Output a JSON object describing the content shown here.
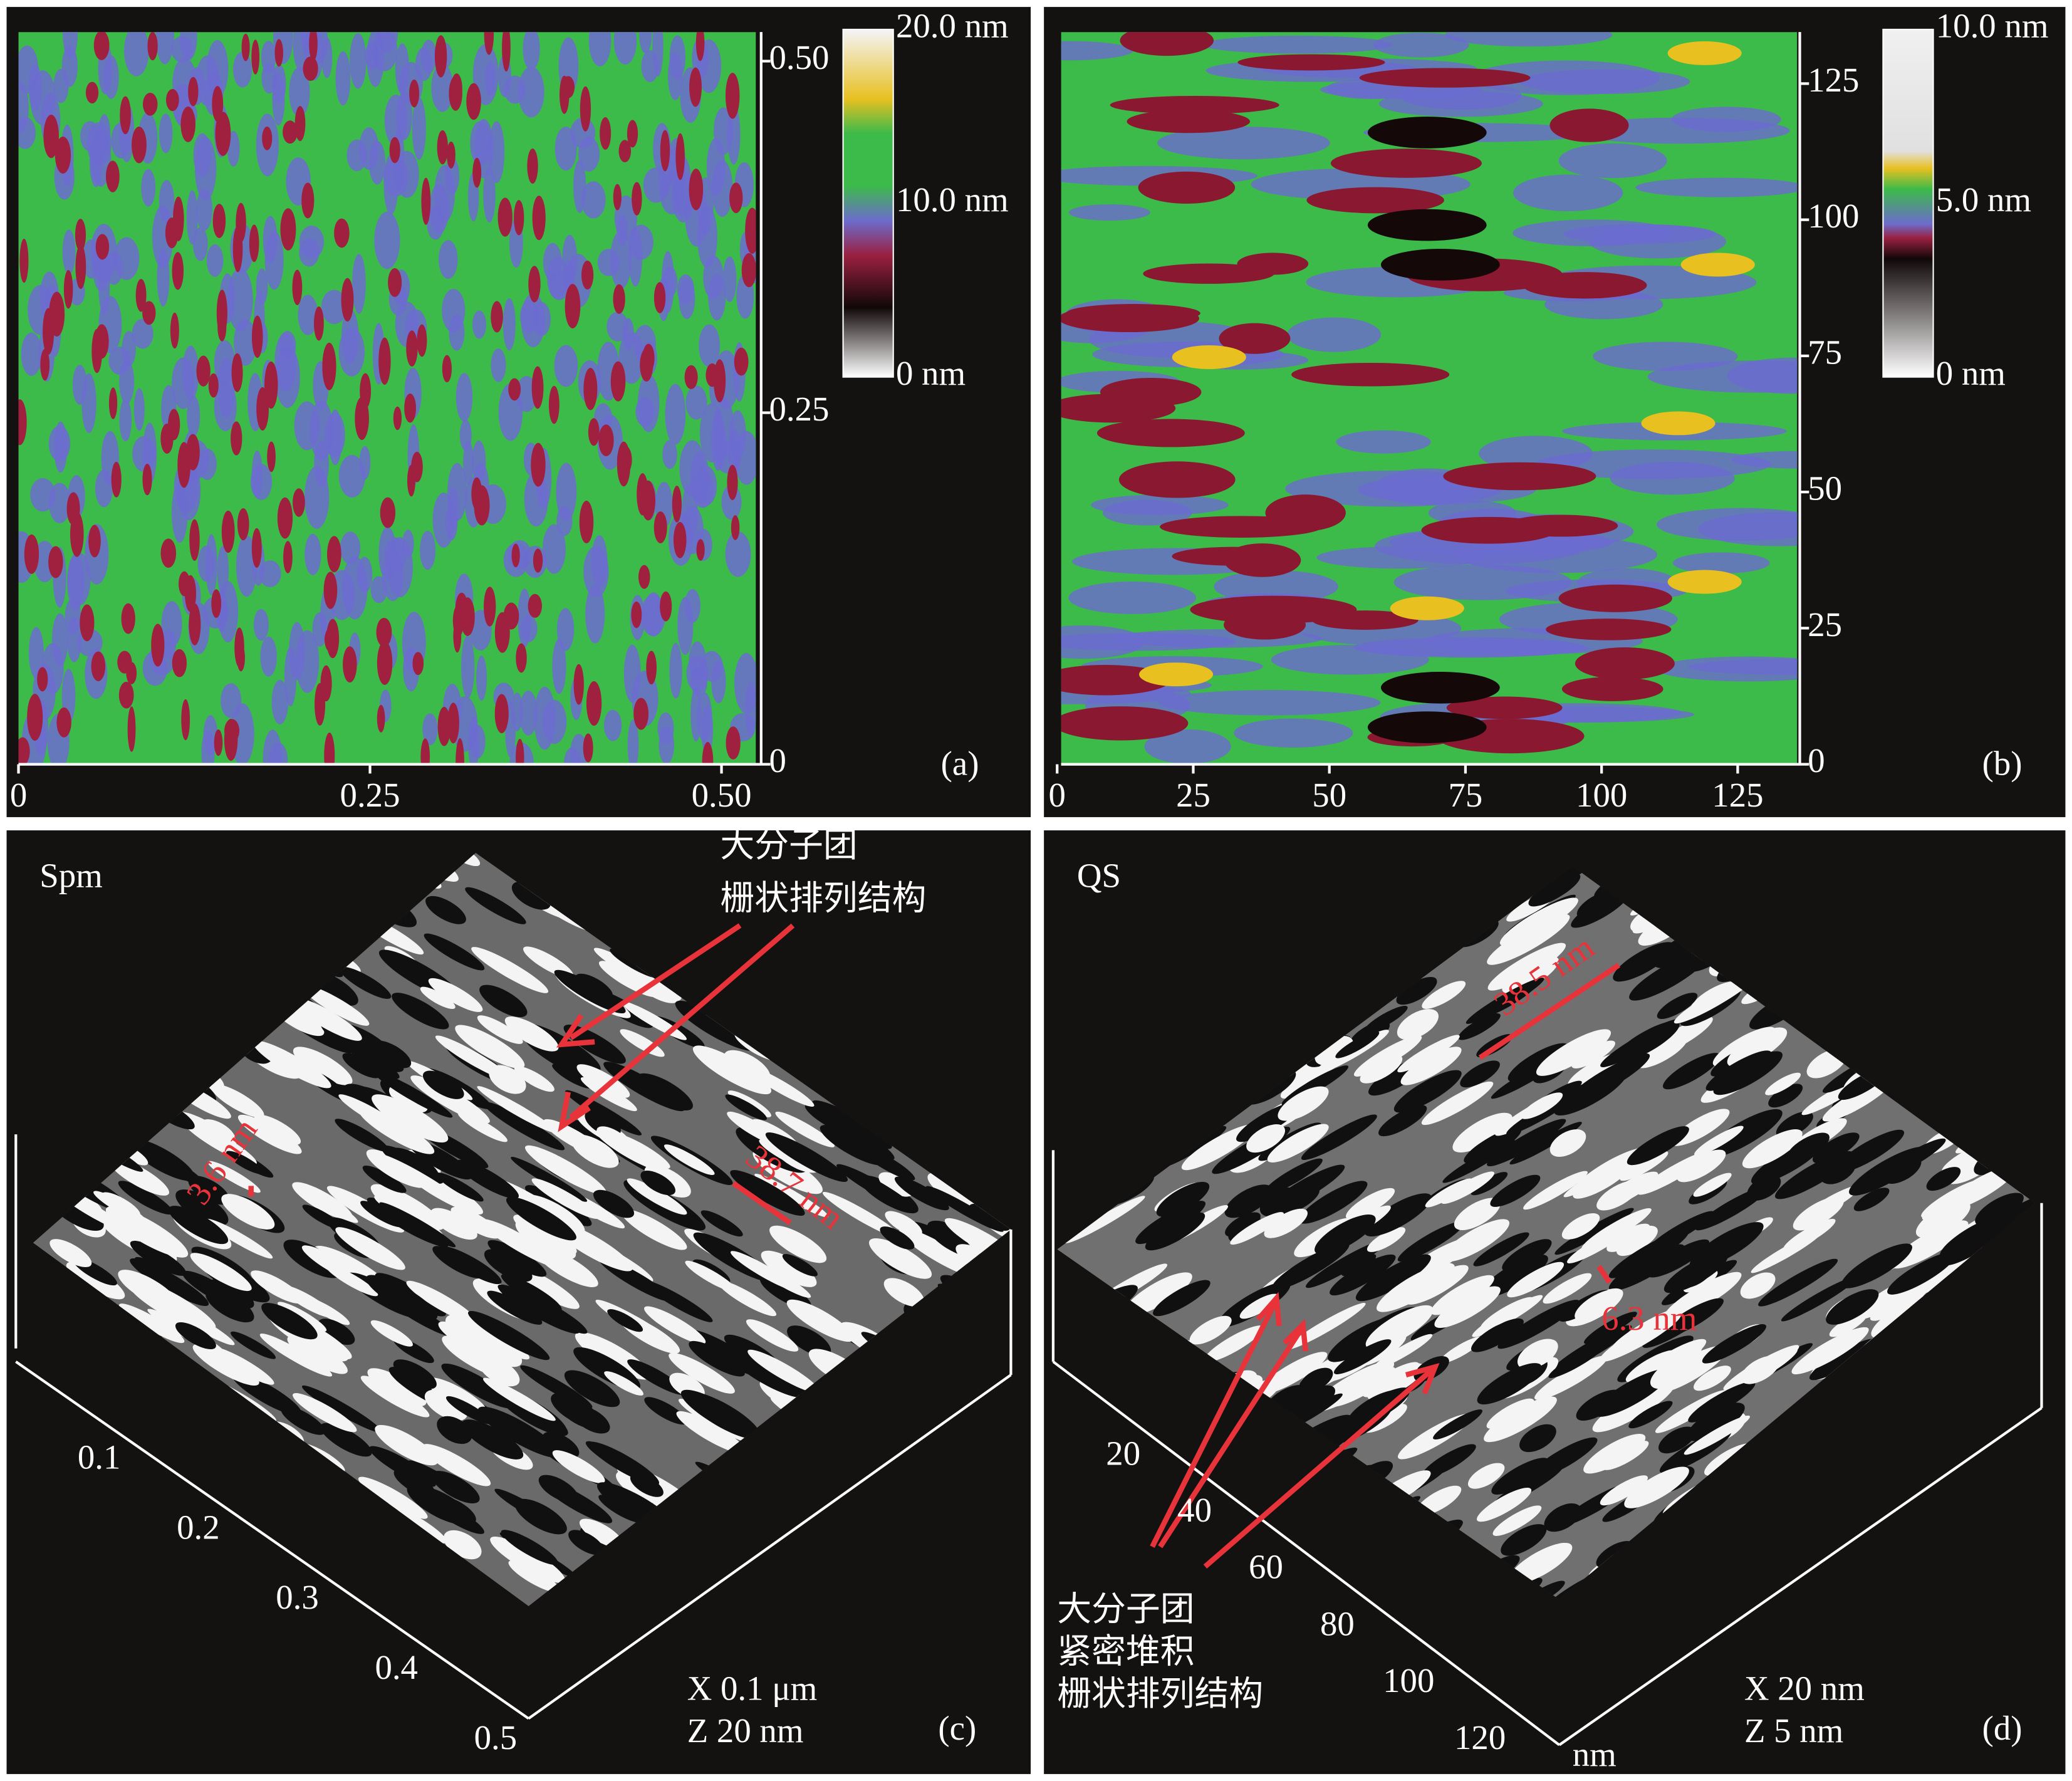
{
  "panels": [
    {
      "label": "(a)",
      "x_ticks": [
        "0",
        "0.25",
        "0.50"
      ],
      "y_ticks": [
        "0",
        "0.25",
        "0.50"
      ],
      "colorbar": [
        "20.0 nm",
        "10.0 nm",
        "0 nm"
      ]
    },
    {
      "label": "(b)",
      "x_ticks": [
        "0",
        "25",
        "50",
        "75",
        "100",
        "125"
      ],
      "y_ticks": [
        "0",
        "25",
        "50",
        "75",
        "100",
        "125"
      ],
      "colorbar": [
        "10.0 nm",
        "5.0 nm",
        "0 nm"
      ]
    },
    {
      "label": "(c)",
      "sample": "Spm",
      "annotation": [
        "大分子团",
        "栅状排列结构"
      ],
      "measurements": [
        "3.6 nm",
        "38.7 nm"
      ],
      "axis_ticks": [
        "0.1",
        "0.2",
        "0.3",
        "0.4",
        "0.5"
      ],
      "scale": [
        "X 0.1 μm",
        "Z 20 nm"
      ]
    },
    {
      "label": "(d)",
      "sample": "QS",
      "annotation": [
        "大分子团",
        "紧密堆积",
        "栅状排列结构"
      ],
      "measurements": [
        "38.5 nm",
        "6.3 nm"
      ],
      "axis_ticks": [
        "20",
        "40",
        "60",
        "80",
        "100",
        "120"
      ],
      "axis_unit": "nm",
      "scale": [
        "X 20 nm",
        "Z 5 nm"
      ]
    }
  ]
}
